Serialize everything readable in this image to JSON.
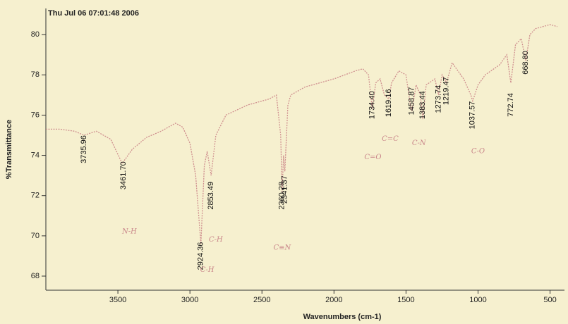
{
  "chart_data": {
    "type": "line",
    "title": "Thu Jul 06 07:01:48 2006",
    "x_label": "Wavenumbers (cm-1)",
    "y_label": "%Transmittance",
    "color": "#cf8f8f",
    "xlim": [
      4000,
      400
    ],
    "ylim": [
      67.3,
      81.3
    ],
    "xticks": [
      3500,
      3000,
      2500,
      2000,
      1500,
      1000,
      500
    ],
    "yticks": [
      68,
      70,
      72,
      74,
      76,
      78,
      80
    ],
    "x": [
      4000,
      3900,
      3800,
      3736,
      3650,
      3550,
      3470,
      3400,
      3300,
      3200,
      3100,
      3050,
      3000,
      2960,
      2924,
      2900,
      2880,
      2853,
      2820,
      2750,
      2600,
      2450,
      2400,
      2370,
      2360,
      2350,
      2341,
      2320,
      2300,
      2200,
      2000,
      1850,
      1800,
      1760,
      1734,
      1710,
      1680,
      1650,
      1620,
      1600,
      1550,
      1500,
      1470,
      1459,
      1430,
      1400,
      1383,
      1360,
      1300,
      1274,
      1250,
      1219,
      1180,
      1100,
      1050,
      1037,
      1000,
      950,
      850,
      800,
      772,
      740,
      700,
      669,
      640,
      600,
      500,
      450
    ],
    "values": [
      75.3,
      75.3,
      75.2,
      75.0,
      75.2,
      74.8,
      73.6,
      74.3,
      74.9,
      75.2,
      75.6,
      75.4,
      74.6,
      73.0,
      69.6,
      73.5,
      74.2,
      73.0,
      75.0,
      76.0,
      76.5,
      76.8,
      77.0,
      75.0,
      72.2,
      74.0,
      73.2,
      76.5,
      77.0,
      77.4,
      77.8,
      78.2,
      78.3,
      78.0,
      76.3,
      77.6,
      77.8,
      77.0,
      76.8,
      77.6,
      78.2,
      78.0,
      76.5,
      76.2,
      77.5,
      77.0,
      75.8,
      77.5,
      77.8,
      77.0,
      78.0,
      77.6,
      78.6,
      77.8,
      77.0,
      76.7,
      77.5,
      78.0,
      78.5,
      79.0,
      77.6,
      79.5,
      79.8,
      78.7,
      80.0,
      80.3,
      80.5,
      80.4
    ],
    "peaks": [
      {
        "value": 3735.96,
        "label": "3735.96",
        "y": 75.1
      },
      {
        "value": 3461.7,
        "label": "3461.70",
        "y": 73.8
      },
      {
        "value": 2924.36,
        "label": "2924.36",
        "y": 69.8
      },
      {
        "value": 2853.49,
        "label": "2853.49",
        "y": 72.8
      },
      {
        "value": 2360.28,
        "label": "2360.28",
        "y": 72.8
      },
      {
        "value": 2341.37,
        "label": "2341.37",
        "y": 73.1
      },
      {
        "value": 1734.4,
        "label": "1734.40",
        "y": 77.3
      },
      {
        "value": 1619.16,
        "label": "1619.16",
        "y": 77.4
      },
      {
        "value": 1458.87,
        "label": "1458.87",
        "y": 77.5
      },
      {
        "value": 1383.44,
        "label": "1383.44",
        "y": 77.3
      },
      {
        "value": 1273.74,
        "label": "1273.74",
        "y": 77.6
      },
      {
        "value": 1219.47,
        "label": "1219.47",
        "y": 78.0
      },
      {
        "value": 1037.57,
        "label": "1037.57",
        "y": 76.8
      },
      {
        "value": 772.74,
        "label": "772.74",
        "y": 77.2
      },
      {
        "value": 668.8,
        "label": "668.80",
        "y": 79.3
      }
    ],
    "annotations": [
      {
        "text": "N-H",
        "x": 3420,
        "y": 70.2
      },
      {
        "text": "C-H",
        "x": 2820,
        "y": 69.8
      },
      {
        "text": "C-H",
        "x": 2880,
        "y": 68.3
      },
      {
        "text": "C≡N",
        "x": 2360,
        "y": 69.4
      },
      {
        "text": "C=O",
        "x": 1730,
        "y": 73.9
      },
      {
        "text": "C=C",
        "x": 1610,
        "y": 74.8
      },
      {
        "text": "C-N",
        "x": 1410,
        "y": 74.6
      },
      {
        "text": "C-O",
        "x": 1000,
        "y": 74.2
      }
    ]
  }
}
